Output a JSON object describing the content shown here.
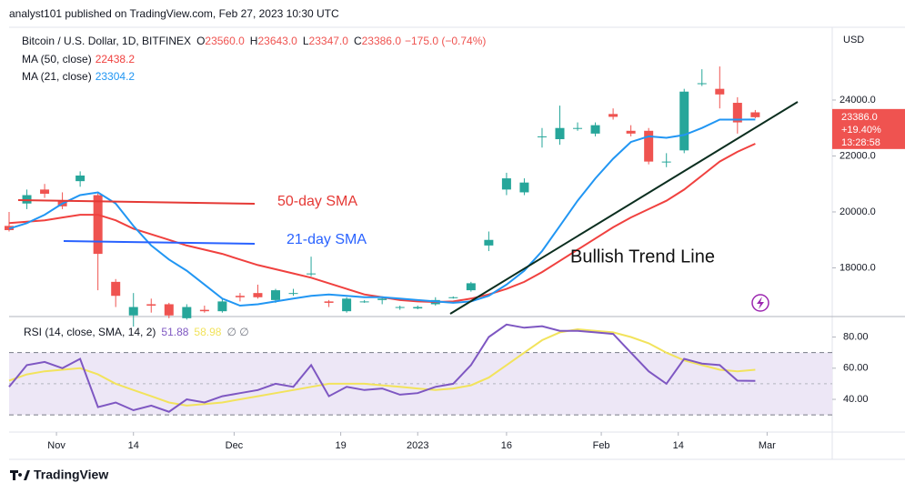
{
  "header": {
    "publisher": "analyst101 published on TradingView.com, Feb 27, 2023 10:30 UTC"
  },
  "footer": {
    "brand": "TradingView"
  },
  "chart_data": [
    {
      "type": "candlestick",
      "title": "Bitcoin / U.S. Dollar, 1D, BITFINEX",
      "ohlc_legend": [
        {
          "label": "O",
          "value": "23560.0"
        },
        {
          "label": "H",
          "value": "23643.0"
        },
        {
          "label": "L",
          "value": "23347.0"
        },
        {
          "label": "C",
          "value": "23386.0"
        }
      ],
      "change": "−175.0 (−0.74%)",
      "axis_unit": "USD",
      "last_price_label": "23386.0",
      "change_label": "+19.40%",
      "countdown": "13:28:58",
      "up_color": "#26a69a",
      "down_color": "#ef5350",
      "x": [
        "2022-10-24",
        "2022-10-27",
        "2022-10-30",
        "2022-11-02",
        "2022-11-05",
        "2022-11-08",
        "2022-11-11",
        "2022-11-14",
        "2022-11-17",
        "2022-11-20",
        "2022-11-23",
        "2022-11-26",
        "2022-11-29",
        "2022-12-02",
        "2022-12-05",
        "2022-12-08",
        "2022-12-11",
        "2022-12-14",
        "2022-12-17",
        "2022-12-20",
        "2022-12-23",
        "2022-12-26",
        "2022-12-29",
        "2023-01-01",
        "2023-01-04",
        "2023-01-07",
        "2023-01-10",
        "2023-01-13",
        "2023-01-16",
        "2023-01-19",
        "2023-01-22",
        "2023-01-25",
        "2023-01-28",
        "2023-01-31",
        "2023-02-03",
        "2023-02-06",
        "2023-02-09",
        "2023-02-12",
        "2023-02-15",
        "2023-02-18",
        "2023-02-21",
        "2023-02-24",
        "2023-02-27"
      ],
      "open": [
        19500,
        20300,
        20800,
        20400,
        21100,
        20600,
        17500,
        16300,
        16700,
        16700,
        16200,
        16500,
        16450,
        17000,
        17100,
        16850,
        17100,
        17800,
        16800,
        16450,
        16800,
        16850,
        16600,
        16550,
        16700,
        16950,
        17200,
        18800,
        20800,
        20700,
        22700,
        22600,
        23000,
        22800,
        23500,
        22900,
        22900,
        21800,
        22200,
        24600,
        24400,
        23900,
        23560
      ],
      "high": [
        20000,
        20800,
        21000,
        20700,
        21450,
        20700,
        17600,
        17100,
        16900,
        16750,
        16700,
        16650,
        16900,
        17100,
        17400,
        17250,
        17250,
        18400,
        16850,
        16950,
        16850,
        16950,
        16650,
        16650,
        16950,
        16980,
        17500,
        19300,
        21400,
        21200,
        23000,
        23800,
        23200,
        23200,
        23700,
        23100,
        23000,
        22100,
        24400,
        25100,
        25200,
        24100,
        23643
      ],
      "low": [
        19300,
        20100,
        20500,
        20100,
        20900,
        17200,
        16600,
        15900,
        16400,
        16200,
        16150,
        16400,
        16400,
        16800,
        16900,
        16750,
        17000,
        17700,
        16600,
        16400,
        16750,
        16700,
        16500,
        16520,
        16650,
        16900,
        17150,
        18600,
        20600,
        20600,
        22300,
        22400,
        22900,
        22700,
        23300,
        22700,
        21700,
        21600,
        22100,
        24500,
        23700,
        22800,
        23347
      ],
      "close": [
        19350,
        20600,
        20650,
        20200,
        21300,
        18500,
        17000,
        16600,
        16650,
        16300,
        16600,
        16450,
        16800,
        16950,
        16950,
        17200,
        17100,
        17800,
        16750,
        16900,
        16800,
        16900,
        16600,
        16600,
        16850,
        16950,
        17450,
        19000,
        21200,
        21050,
        22700,
        23000,
        23000,
        23100,
        23400,
        22800,
        21800,
        21800,
        24300,
        24600,
        24200,
        23200,
        23386
      ],
      "series": [
        {
          "name": "MA (50, close)",
          "legend_value": "22438.2",
          "color": "#f0413f",
          "values": [
            19600,
            19650,
            19700,
            19800,
            19900,
            19900,
            19700,
            19400,
            19200,
            19000,
            18800,
            18650,
            18500,
            18300,
            18100,
            17950,
            17800,
            17650,
            17450,
            17250,
            17050,
            16950,
            16850,
            16800,
            16780,
            16800,
            16900,
            17050,
            17250,
            17500,
            17850,
            18250,
            18650,
            19050,
            19450,
            19800,
            20100,
            20400,
            20800,
            21300,
            21800,
            22150,
            22438.2
          ]
        },
        {
          "name": "MA (21, close)",
          "legend_value": "23304.2",
          "color": "#2196f3",
          "values": [
            19400,
            19600,
            19900,
            20300,
            20600,
            20700,
            20300,
            19500,
            18800,
            18300,
            17900,
            17400,
            16900,
            16650,
            16700,
            16800,
            16900,
            17000,
            17050,
            17000,
            16950,
            16950,
            16900,
            16850,
            16800,
            16750,
            16800,
            17000,
            17400,
            17900,
            18600,
            19500,
            20400,
            21200,
            21900,
            22500,
            22700,
            22650,
            22750,
            23000,
            23300,
            23300,
            23304.2
          ]
        }
      ],
      "annotations": [
        {
          "text": "50-day SMA",
          "color": "#e53935"
        },
        {
          "text": "21-day SMA",
          "color": "#2962ff"
        },
        {
          "text": "Bullish Trend Line",
          "color": "#111111"
        }
      ],
      "xlim": [
        "2022-10-24",
        "2023-03-12"
      ],
      "xticks": [
        {
          "value": "2022-11-01",
          "label": "Nov"
        },
        {
          "value": "2022-11-14",
          "label": "14"
        },
        {
          "value": "2022-12-01",
          "label": "Dec"
        },
        {
          "value": "2022-12-19",
          "label": "19"
        },
        {
          "value": "2023-01-01",
          "label": "2023"
        },
        {
          "value": "2023-01-16",
          "label": "16"
        },
        {
          "value": "2023-02-01",
          "label": "Feb"
        },
        {
          "value": "2023-02-14",
          "label": "14"
        },
        {
          "value": "2023-03-01",
          "label": "Mar"
        }
      ],
      "ylim": [
        16260,
        26600
      ],
      "yticks": [
        {
          "value": 18000,
          "label": "18000.0"
        },
        {
          "value": 20000,
          "label": "20000.0"
        },
        {
          "value": 22000,
          "label": "22000.0"
        },
        {
          "value": 24000,
          "label": "24000.0"
        }
      ]
    },
    {
      "type": "line",
      "title": "RSI (14, close, SMA, 14, 2)",
      "legend_extra": "∅ ∅",
      "x": [
        "2022-10-24",
        "2022-10-27",
        "2022-10-30",
        "2022-11-02",
        "2022-11-05",
        "2022-11-08",
        "2022-11-11",
        "2022-11-14",
        "2022-11-17",
        "2022-11-20",
        "2022-11-23",
        "2022-11-26",
        "2022-11-29",
        "2022-12-02",
        "2022-12-05",
        "2022-12-08",
        "2022-12-11",
        "2022-12-14",
        "2022-12-17",
        "2022-12-20",
        "2022-12-23",
        "2022-12-26",
        "2022-12-29",
        "2023-01-01",
        "2023-01-04",
        "2023-01-07",
        "2023-01-10",
        "2023-01-13",
        "2023-01-16",
        "2023-01-19",
        "2023-01-22",
        "2023-01-25",
        "2023-01-28",
        "2023-01-31",
        "2023-02-03",
        "2023-02-06",
        "2023-02-09",
        "2023-02-12",
        "2023-02-15",
        "2023-02-18",
        "2023-02-21",
        "2023-02-24",
        "2023-02-27"
      ],
      "series": [
        {
          "legend_value": "51.88",
          "color": "#7e57c2",
          "values": [
            48,
            62,
            64,
            60,
            66,
            35,
            38,
            33,
            36,
            32,
            40,
            38,
            42,
            44,
            46,
            50,
            48,
            62,
            42,
            48,
            46,
            47,
            43,
            44,
            48,
            50,
            62,
            80,
            88,
            86,
            87,
            84,
            84,
            83,
            82,
            70,
            58,
            50,
            66,
            63,
            62,
            52,
            51.88
          ]
        },
        {
          "legend_value": "58.98",
          "color": "#f2e35c",
          "values": [
            52,
            56,
            58,
            59,
            60,
            56,
            50,
            46,
            42,
            38,
            36,
            37,
            38,
            40,
            42,
            44,
            46,
            48,
            50,
            50,
            50,
            49,
            48,
            47,
            46,
            47,
            49,
            54,
            62,
            70,
            78,
            83,
            85,
            84,
            83,
            80,
            76,
            70,
            65,
            62,
            59,
            58,
            58.98
          ]
        }
      ],
      "band": [
        30,
        70
      ],
      "midline": 50,
      "band_color": "#ede7f6",
      "xlim": [
        "2022-10-24",
        "2023-03-12"
      ],
      "ylim": [
        19,
        92
      ],
      "yticks": [
        {
          "value": 40,
          "label": "40.00"
        },
        {
          "value": 60,
          "label": "60.00"
        },
        {
          "value": 80,
          "label": "80.00"
        }
      ]
    }
  ]
}
